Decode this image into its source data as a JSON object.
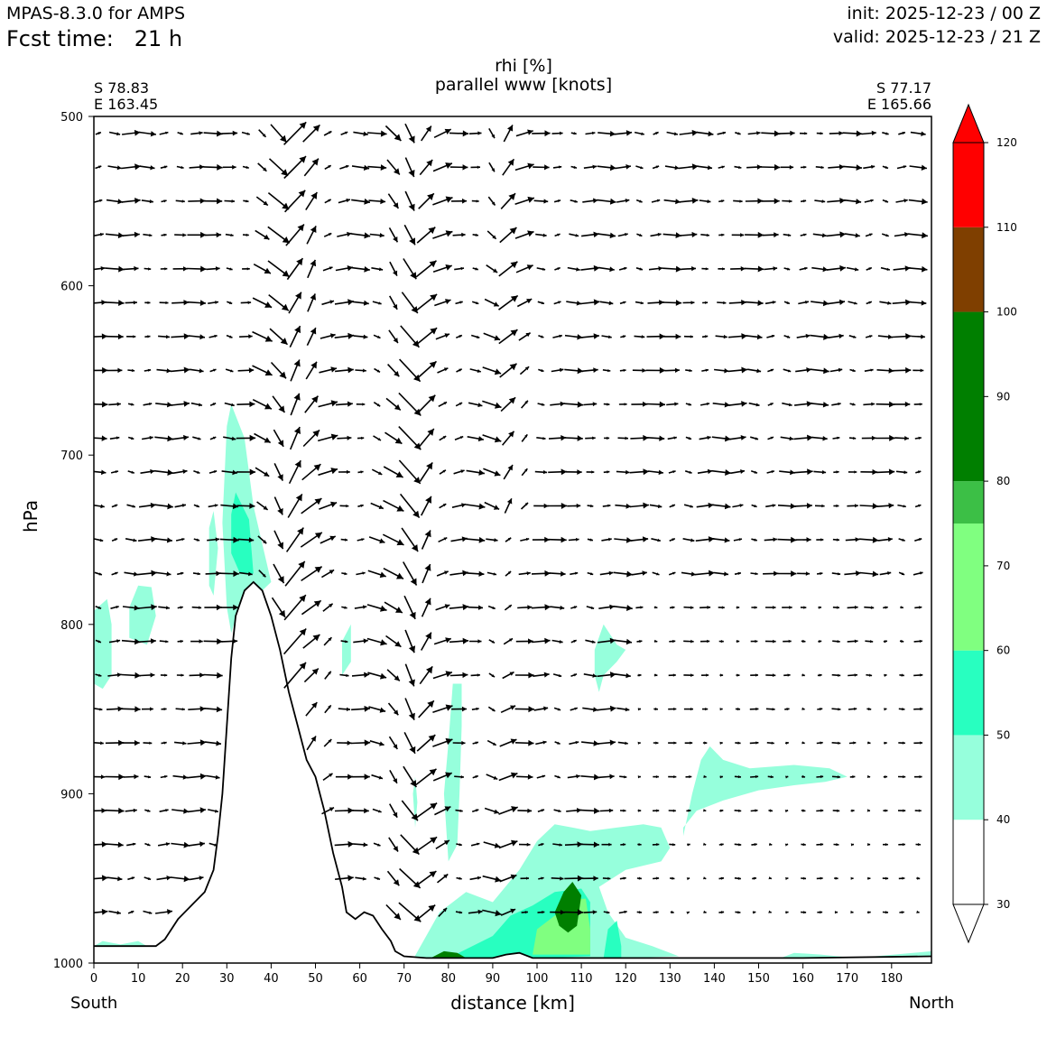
{
  "header": {
    "model": "MPAS-8.3.0 for AMPS",
    "fcst_label": "Fcst time:",
    "fcst_value": "21 h",
    "init": "init: 2025-12-23 / 00 Z",
    "valid": "valid: 2025-12-23 / 21 Z"
  },
  "chart_data": {
    "type": "heatmap",
    "title": "rhi [%]",
    "subtitle": "parallel www [knots]",
    "xlabel": "distance [km]",
    "ylabel": "hPa",
    "xlim": [
      0,
      189
    ],
    "ylim": [
      1000,
      500
    ],
    "xticks": [
      0,
      10,
      20,
      30,
      40,
      50,
      60,
      70,
      80,
      90,
      100,
      110,
      120,
      130,
      140,
      150,
      160,
      170,
      180
    ],
    "yticks": [
      500,
      600,
      700,
      800,
      900,
      1000
    ],
    "start": {
      "lat": "S 78.83",
      "lon": "E 163.45",
      "end_label": "South"
    },
    "end": {
      "lat": "S 77.17",
      "lon": "E 165.66",
      "end_label": "North"
    },
    "colorbar": {
      "levels": [
        30,
        40,
        50,
        60,
        70,
        80,
        90,
        100,
        110,
        120
      ],
      "bins": [
        {
          "from": 30,
          "to": 40,
          "color": "#ffffff"
        },
        {
          "from": 40,
          "to": 50,
          "color": "#96ffdc"
        },
        {
          "from": 50,
          "to": 60,
          "color": "#28ffc0"
        },
        {
          "from": 60,
          "to": 75,
          "color": "#80ff80"
        },
        {
          "from": 75,
          "to": 80,
          "color": "#3cbf46"
        },
        {
          "from": 80,
          "to": 100,
          "color": "#007f00"
        },
        {
          "from": 100,
          "to": 110,
          "color": "#7f3f00"
        },
        {
          "from": 110,
          "to": 120,
          "color": "#ff0000"
        }
      ]
    },
    "terrain": [
      [
        0,
        990
      ],
      [
        14,
        990
      ],
      [
        16,
        986
      ],
      [
        19,
        974
      ],
      [
        22,
        966
      ],
      [
        25,
        958
      ],
      [
        27,
        945
      ],
      [
        28,
        925
      ],
      [
        29,
        900
      ],
      [
        30,
        860
      ],
      [
        31,
        820
      ],
      [
        32,
        795
      ],
      [
        34,
        780
      ],
      [
        36,
        775
      ],
      [
        38,
        780
      ],
      [
        40,
        795
      ],
      [
        42,
        815
      ],
      [
        44,
        840
      ],
      [
        46,
        860
      ],
      [
        48,
        880
      ],
      [
        50,
        890
      ],
      [
        52,
        910
      ],
      [
        54,
        935
      ],
      [
        56,
        955
      ],
      [
        57,
        970
      ],
      [
        59,
        974
      ],
      [
        61,
        970
      ],
      [
        63,
        972
      ],
      [
        65,
        980
      ],
      [
        67,
        987
      ],
      [
        68,
        993
      ],
      [
        70,
        996
      ],
      [
        75,
        997
      ],
      [
        80,
        997
      ],
      [
        85,
        997
      ],
      [
        90,
        997
      ],
      [
        93,
        995
      ],
      [
        96,
        994
      ],
      [
        99,
        997
      ],
      [
        105,
        997
      ],
      [
        120,
        997
      ],
      [
        140,
        997
      ],
      [
        160,
        997
      ],
      [
        189,
        996
      ]
    ],
    "rhi_regions": [
      {
        "level": 40,
        "points": [
          [
            0,
            792
          ],
          [
            3,
            785
          ],
          [
            4,
            800
          ],
          [
            4,
            830
          ],
          [
            2,
            838
          ],
          [
            0,
            835
          ]
        ]
      },
      {
        "level": 40,
        "points": [
          [
            8,
            790
          ],
          [
            10,
            777
          ],
          [
            13,
            778
          ],
          [
            14,
            795
          ],
          [
            12,
            812
          ],
          [
            8,
            808
          ]
        ]
      },
      {
        "level": 40,
        "points": [
          [
            26,
            743
          ],
          [
            27,
            733
          ],
          [
            28,
            755
          ],
          [
            27,
            783
          ],
          [
            26,
            777
          ]
        ]
      },
      {
        "level": 40,
        "points": [
          [
            30,
            683
          ],
          [
            31,
            670
          ],
          [
            34,
            690
          ],
          [
            36,
            730
          ],
          [
            40,
            775
          ],
          [
            38,
            780
          ],
          [
            35,
            778
          ],
          [
            33,
            788
          ],
          [
            31,
            805
          ],
          [
            30,
            790
          ],
          [
            29,
            740
          ]
        ]
      },
      {
        "level": 50,
        "points": [
          [
            31,
            735
          ],
          [
            32,
            722
          ],
          [
            35,
            738
          ],
          [
            36,
            770
          ],
          [
            33,
            770
          ],
          [
            31,
            758
          ]
        ]
      },
      {
        "level": 40,
        "points": [
          [
            56,
            810
          ],
          [
            58,
            800
          ],
          [
            58,
            822
          ],
          [
            56,
            830
          ]
        ]
      },
      {
        "level": 40,
        "points": [
          [
            72,
            900
          ],
          [
            72.5,
            890
          ],
          [
            73,
            905
          ],
          [
            72.5,
            920
          ]
        ]
      },
      {
        "level": 40,
        "points": [
          [
            81,
            835
          ],
          [
            83,
            835
          ],
          [
            83,
            860
          ],
          [
            82.5,
            900
          ],
          [
            82,
            930
          ],
          [
            80,
            940
          ],
          [
            79,
            900
          ],
          [
            80,
            870
          ]
        ]
      },
      {
        "level": 40,
        "points": [
          [
            72,
            998
          ],
          [
            78,
            970
          ],
          [
            84,
            958
          ],
          [
            90,
            964
          ],
          [
            96,
            945
          ],
          [
            100,
            928
          ],
          [
            104,
            918
          ],
          [
            108,
            920
          ],
          [
            112,
            922
          ],
          [
            118,
            920
          ],
          [
            124,
            918
          ],
          [
            128,
            920
          ],
          [
            130,
            932
          ],
          [
            128,
            940
          ],
          [
            120,
            945
          ],
          [
            114,
            955
          ],
          [
            116,
            970
          ],
          [
            120,
            985
          ],
          [
            126,
            990
          ],
          [
            132,
            996
          ],
          [
            120,
            997
          ],
          [
            90,
            997
          ]
        ]
      },
      {
        "level": 50,
        "points": [
          [
            80,
            997
          ],
          [
            90,
            984
          ],
          [
            94,
            972
          ],
          [
            99,
            966
          ],
          [
            104,
            958
          ],
          [
            110,
            956
          ],
          [
            112,
            964
          ],
          [
            112,
            996
          ],
          [
            100,
            997
          ],
          [
            90,
            997
          ]
        ]
      },
      {
        "level": 50,
        "points": [
          [
            115,
            997
          ],
          [
            116,
            980
          ],
          [
            118,
            975
          ],
          [
            119,
            990
          ],
          [
            119,
            997
          ]
        ]
      },
      {
        "level": 60,
        "points": [
          [
            99,
            995
          ],
          [
            100,
            980
          ],
          [
            104,
            972
          ],
          [
            108,
            962
          ],
          [
            111,
            962
          ],
          [
            112,
            980
          ],
          [
            112,
            995
          ]
        ]
      },
      {
        "level": 80,
        "points": [
          [
            104,
            970
          ],
          [
            106,
            958
          ],
          [
            108,
            952
          ],
          [
            110,
            960
          ],
          [
            109,
            978
          ],
          [
            107,
            982
          ],
          [
            105,
            978
          ]
        ]
      },
      {
        "level": 40,
        "points": [
          [
            113,
            815
          ],
          [
            115,
            800
          ],
          [
            118,
            812
          ],
          [
            120,
            815
          ],
          [
            118,
            822
          ],
          [
            115,
            830
          ],
          [
            114,
            840
          ],
          [
            113,
            830
          ]
        ]
      },
      {
        "level": 40,
        "points": [
          [
            133,
            925
          ],
          [
            135,
            900
          ],
          [
            137,
            880
          ],
          [
            139,
            872
          ],
          [
            142,
            880
          ],
          [
            148,
            885
          ],
          [
            158,
            883
          ],
          [
            166,
            885
          ],
          [
            170,
            890
          ],
          [
            165,
            893
          ],
          [
            158,
            895
          ],
          [
            150,
            898
          ],
          [
            142,
            904
          ],
          [
            136,
            910
          ],
          [
            133,
            920
          ]
        ]
      },
      {
        "level": 40,
        "points": [
          [
            154,
            998
          ],
          [
            158,
            994
          ],
          [
            164,
            995
          ],
          [
            172,
            997
          ],
          [
            189,
            993
          ],
          [
            189,
            998
          ]
        ]
      },
      {
        "level": 40,
        "points": [
          [
            0,
            990
          ],
          [
            2,
            987
          ],
          [
            6,
            989
          ],
          [
            10,
            987
          ],
          [
            12,
            990
          ]
        ]
      },
      {
        "level": 80,
        "points": [
          [
            76,
            997
          ],
          [
            79,
            993
          ],
          [
            82,
            994
          ],
          [
            84,
            997
          ]
        ]
      }
    ]
  }
}
